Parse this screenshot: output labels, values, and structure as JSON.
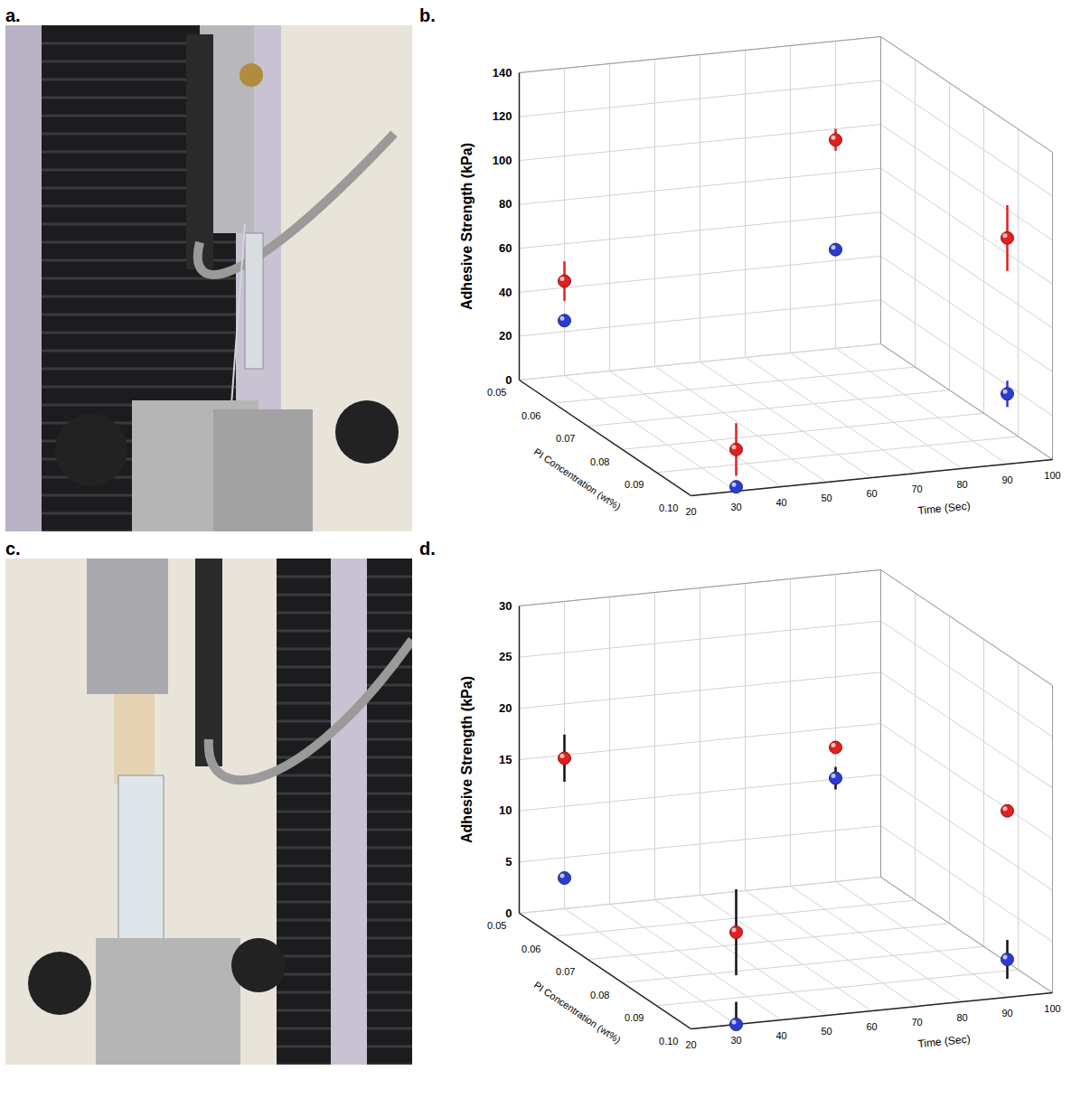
{
  "photos": [
    {
      "label": "a."
    },
    {
      "label": "c."
    }
  ],
  "chart_data": [
    {
      "type": "scatter",
      "panel": "b.",
      "x_label": "Time (Sec)",
      "y_label": "Adhesive Strength (kPa)",
      "z_label": "PI Concentration (wt%)",
      "x": [
        30,
        30,
        90,
        90
      ],
      "z": [
        0.05,
        0.1,
        0.05,
        0.1
      ],
      "xlim": [
        20,
        100
      ],
      "xticks": [
        20,
        30,
        40,
        50,
        60,
        70,
        80,
        90,
        100
      ],
      "ylim": [
        0,
        140
      ],
      "yticks": [
        0,
        20,
        40,
        60,
        80,
        100,
        120,
        140
      ],
      "zlim": [
        0.05,
        0.1
      ],
      "zticks": [
        0.05,
        0.06,
        0.07,
        0.08,
        0.09,
        {
          "value": 0.1,
          "label": "0.10"
        }
      ],
      "grid": true,
      "marker": "sphere",
      "series": [
        {
          "color": "#e0201f",
          "values": [
            43,
            19,
            95,
            103
          ],
          "errors": [
            9,
            12,
            5,
            15
          ]
        },
        {
          "color": "#2b3bcf",
          "values": [
            25,
            2,
            45,
            32
          ],
          "errors": [
            1,
            1,
            2,
            6
          ]
        }
      ]
    },
    {
      "type": "scatter",
      "panel": "d.",
      "x_label": "Time (Sec)",
      "y_label": "Adhesive Strength (kPa)",
      "z_label": "PI Concentration (wt%)",
      "x": [
        30,
        30,
        90,
        90
      ],
      "z": [
        0.05,
        0.1,
        0.05,
        0.1
      ],
      "xlim": [
        20,
        100
      ],
      "xticks": [
        20,
        30,
        40,
        50,
        60,
        70,
        80,
        90,
        100
      ],
      "ylim": [
        0,
        30
      ],
      "yticks": [
        0,
        5,
        10,
        15,
        20,
        25,
        30
      ],
      "zlim": [
        0.05,
        0.1
      ],
      "zticks": [
        0.05,
        0.06,
        0.07,
        0.08,
        0.09,
        {
          "value": 0.1,
          "label": "0.10"
        }
      ],
      "grid": true,
      "marker": "sphere",
      "series": [
        {
          "color": "#e0201f",
          "values": [
            14.7,
            9,
            13.1,
            18.2
          ],
          "errors": [
            2.3,
            4.2,
            0.5,
            0.6
          ]
        },
        {
          "color": "#2b3bcf",
          "values": [
            3,
            0,
            10.1,
            3.7
          ],
          "errors": [
            0.4,
            2.2,
            1.1,
            1.9
          ]
        }
      ]
    }
  ]
}
